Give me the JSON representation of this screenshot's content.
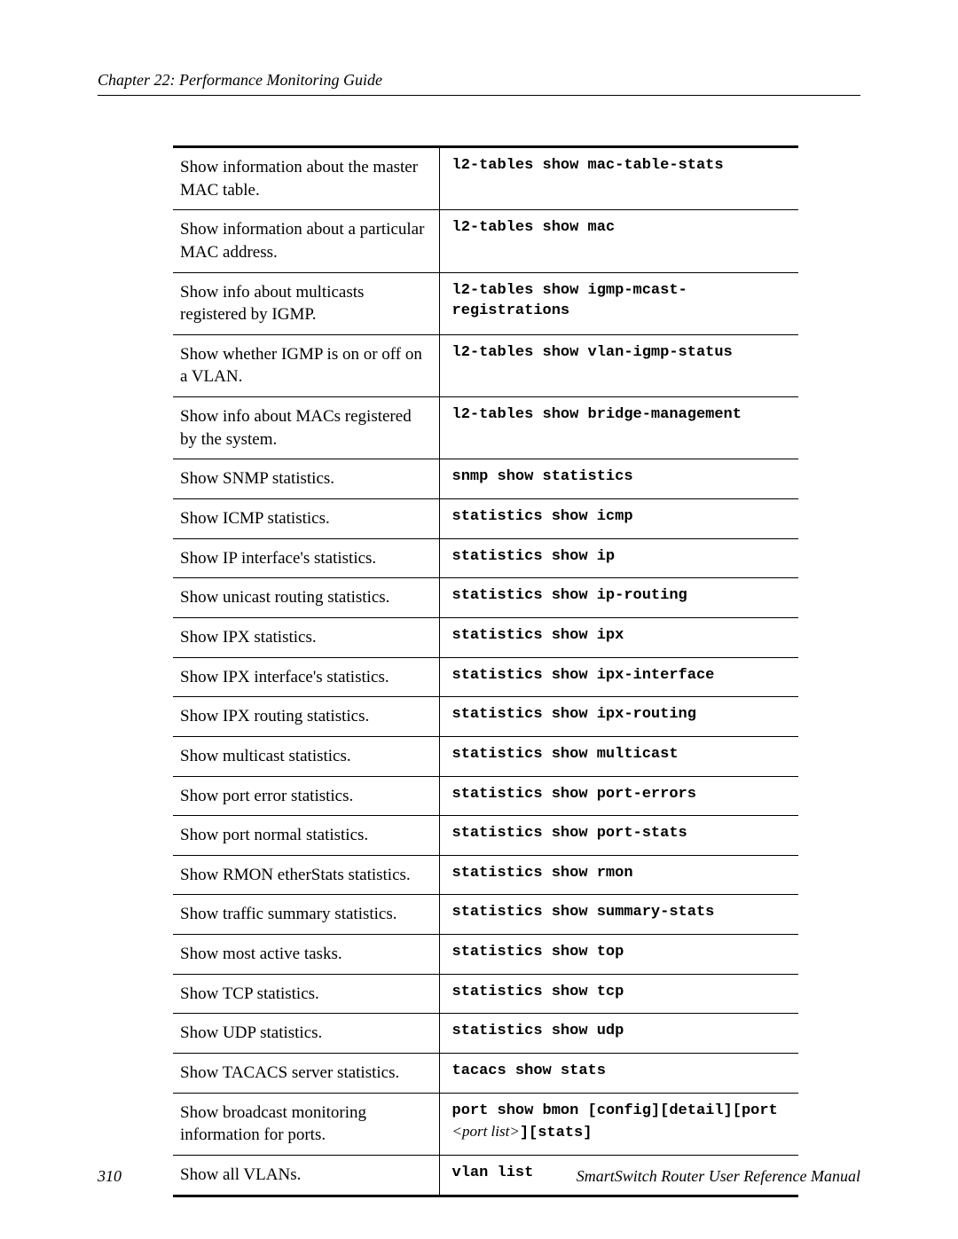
{
  "header": {
    "chapter_label": "Chapter 22: Performance Monitoring Guide"
  },
  "table": {
    "background_color": "#ffffff",
    "border_color": "#000000",
    "desc_font": "serif",
    "cmd_font": "monospace",
    "rows": [
      {
        "desc": "Show information about the master MAC table.",
        "cmd": "l2-tables show mac-table-stats"
      },
      {
        "desc": "Show information about a particular MAC address.",
        "cmd": "l2-tables show mac"
      },
      {
        "desc": "Show info about multicasts registered by IGMP.",
        "cmd": "l2-tables show igmp-mcast-registrations"
      },
      {
        "desc": "Show whether IGMP is on or off on a VLAN.",
        "cmd": "l2-tables show vlan-igmp-status"
      },
      {
        "desc": "Show info about MACs registered by the system.",
        "cmd": "l2-tables show bridge-management"
      },
      {
        "desc": "Show SNMP statistics.",
        "cmd": "snmp show statistics"
      },
      {
        "desc": "Show ICMP statistics.",
        "cmd": "statistics show icmp"
      },
      {
        "desc": "Show IP interface's statistics.",
        "cmd": "statistics show ip"
      },
      {
        "desc": "Show unicast routing statistics.",
        "cmd": "statistics show ip-routing"
      },
      {
        "desc": "Show IPX statistics.",
        "cmd": "statistics show ipx"
      },
      {
        "desc": "Show IPX interface's statistics.",
        "cmd": "statistics show ipx-interface"
      },
      {
        "desc": "Show IPX routing statistics.",
        "cmd": "statistics show ipx-routing"
      },
      {
        "desc": "Show multicast statistics.",
        "cmd": "statistics show multicast"
      },
      {
        "desc": "Show port error statistics.",
        "cmd": "statistics show port-errors"
      },
      {
        "desc": "Show port normal statistics.",
        "cmd": "statistics show port-stats"
      },
      {
        "desc": "Show RMON etherStats statistics.",
        "cmd": "statistics show rmon"
      },
      {
        "desc": "Show traffic summary statistics.",
        "cmd": "statistics show summary-stats"
      },
      {
        "desc": "Show most active tasks.",
        "cmd": "statistics show top"
      },
      {
        "desc": "Show TCP statistics.",
        "cmd": "statistics show tcp"
      },
      {
        "desc": "Show UDP statistics.",
        "cmd": "statistics show udp"
      },
      {
        "desc": "Show TACACS server statistics.",
        "cmd": "tacacs show stats"
      },
      {
        "desc": "Show broadcast monitoring information for ports.",
        "cmd_pre": "port show bmon [config][detail][port ",
        "cmd_arg": "<port list>",
        "cmd_post": "][stats]"
      },
      {
        "desc": "Show all VLANs.",
        "cmd": "vlan list"
      }
    ]
  },
  "footer": {
    "page_number": "310",
    "manual_title": "SmartSwitch Router User Reference Manual"
  }
}
